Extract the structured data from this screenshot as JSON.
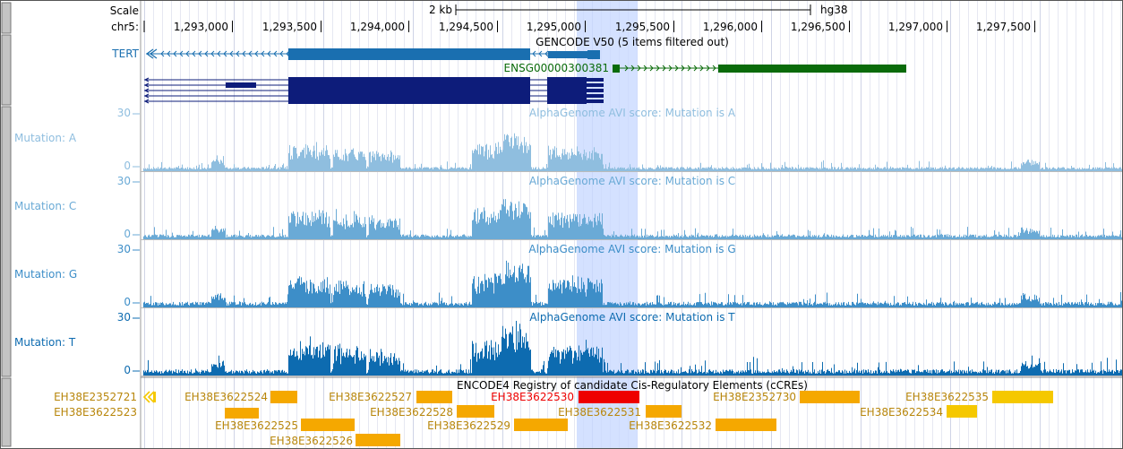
{
  "assembly": "hg38",
  "ruler": {
    "scale_label": "Scale",
    "scale_value": "2 kb",
    "chrom_label": "chr5:",
    "positions": [
      "1,293,000",
      "1,293,500",
      "1,294,000",
      "1,294,500",
      "1,295,000",
      "1,295,500",
      "1,296,000",
      "1,296,500",
      "1,297,000",
      "1,297,500"
    ]
  },
  "gencode": {
    "title": "GENCODE V50 (5 items filtered out)",
    "tert_label": "TERT",
    "ensg_label": "ENSG00000300381",
    "colors": {
      "tert": "#1a6fb0",
      "ensg": "#0a6b0a",
      "iso": "#0d1c7a"
    }
  },
  "signal_tracks": [
    {
      "name": "Mutation: A",
      "title": "AlphaGenome AVI score: Mutation is A",
      "ymax": "30",
      "ymin": "0",
      "color": "#8fbedf",
      "intensity": 0.55
    },
    {
      "name": "Mutation: C",
      "title": "AlphaGenome AVI score: Mutation is C",
      "ymax": "30",
      "ymin": "0",
      "color": "#6aaad6",
      "intensity": 0.7
    },
    {
      "name": "Mutation: G",
      "title": "AlphaGenome AVI score: Mutation is G",
      "ymax": "30",
      "ymin": "0",
      "color": "#3d8ec8",
      "intensity": 0.85
    },
    {
      "name": "Mutation: T",
      "title": "AlphaGenome AVI score: Mutation is T",
      "ymax": "30",
      "ymin": "0",
      "color": "#0d6bb0",
      "intensity": 1.0
    }
  ],
  "ccre": {
    "title": "ENCODE4 Registry of candidate Cis-Regulatory Elements (cCREs)",
    "elements": [
      {
        "id": "EH38E2352721",
        "highlight": false,
        "color": "#f5c800"
      },
      {
        "id": "EH38E3622523",
        "highlight": false,
        "color": "#f5a800"
      },
      {
        "id": "EH38E3622524",
        "highlight": false,
        "color": "#f5a800"
      },
      {
        "id": "EH38E3622525",
        "highlight": false,
        "color": "#f5a800"
      },
      {
        "id": "EH38E3622526",
        "highlight": false,
        "color": "#f5a800"
      },
      {
        "id": "EH38E3622527",
        "highlight": false,
        "color": "#f5a800"
      },
      {
        "id": "EH38E3622528",
        "highlight": false,
        "color": "#f5a800"
      },
      {
        "id": "EH38E3622529",
        "highlight": false,
        "color": "#f5a800"
      },
      {
        "id": "EH38E3622530",
        "highlight": true,
        "color": "#ee0000"
      },
      {
        "id": "EH38E3622531",
        "highlight": false,
        "color": "#f5a800"
      },
      {
        "id": "EH38E3622532",
        "highlight": false,
        "color": "#f5a800"
      },
      {
        "id": "EH38E2352730",
        "highlight": false,
        "color": "#f5a800"
      },
      {
        "id": "EH38E3622534",
        "highlight": false,
        "color": "#f5c800"
      },
      {
        "id": "EH38E3622535",
        "highlight": false,
        "color": "#f5c800"
      }
    ]
  }
}
